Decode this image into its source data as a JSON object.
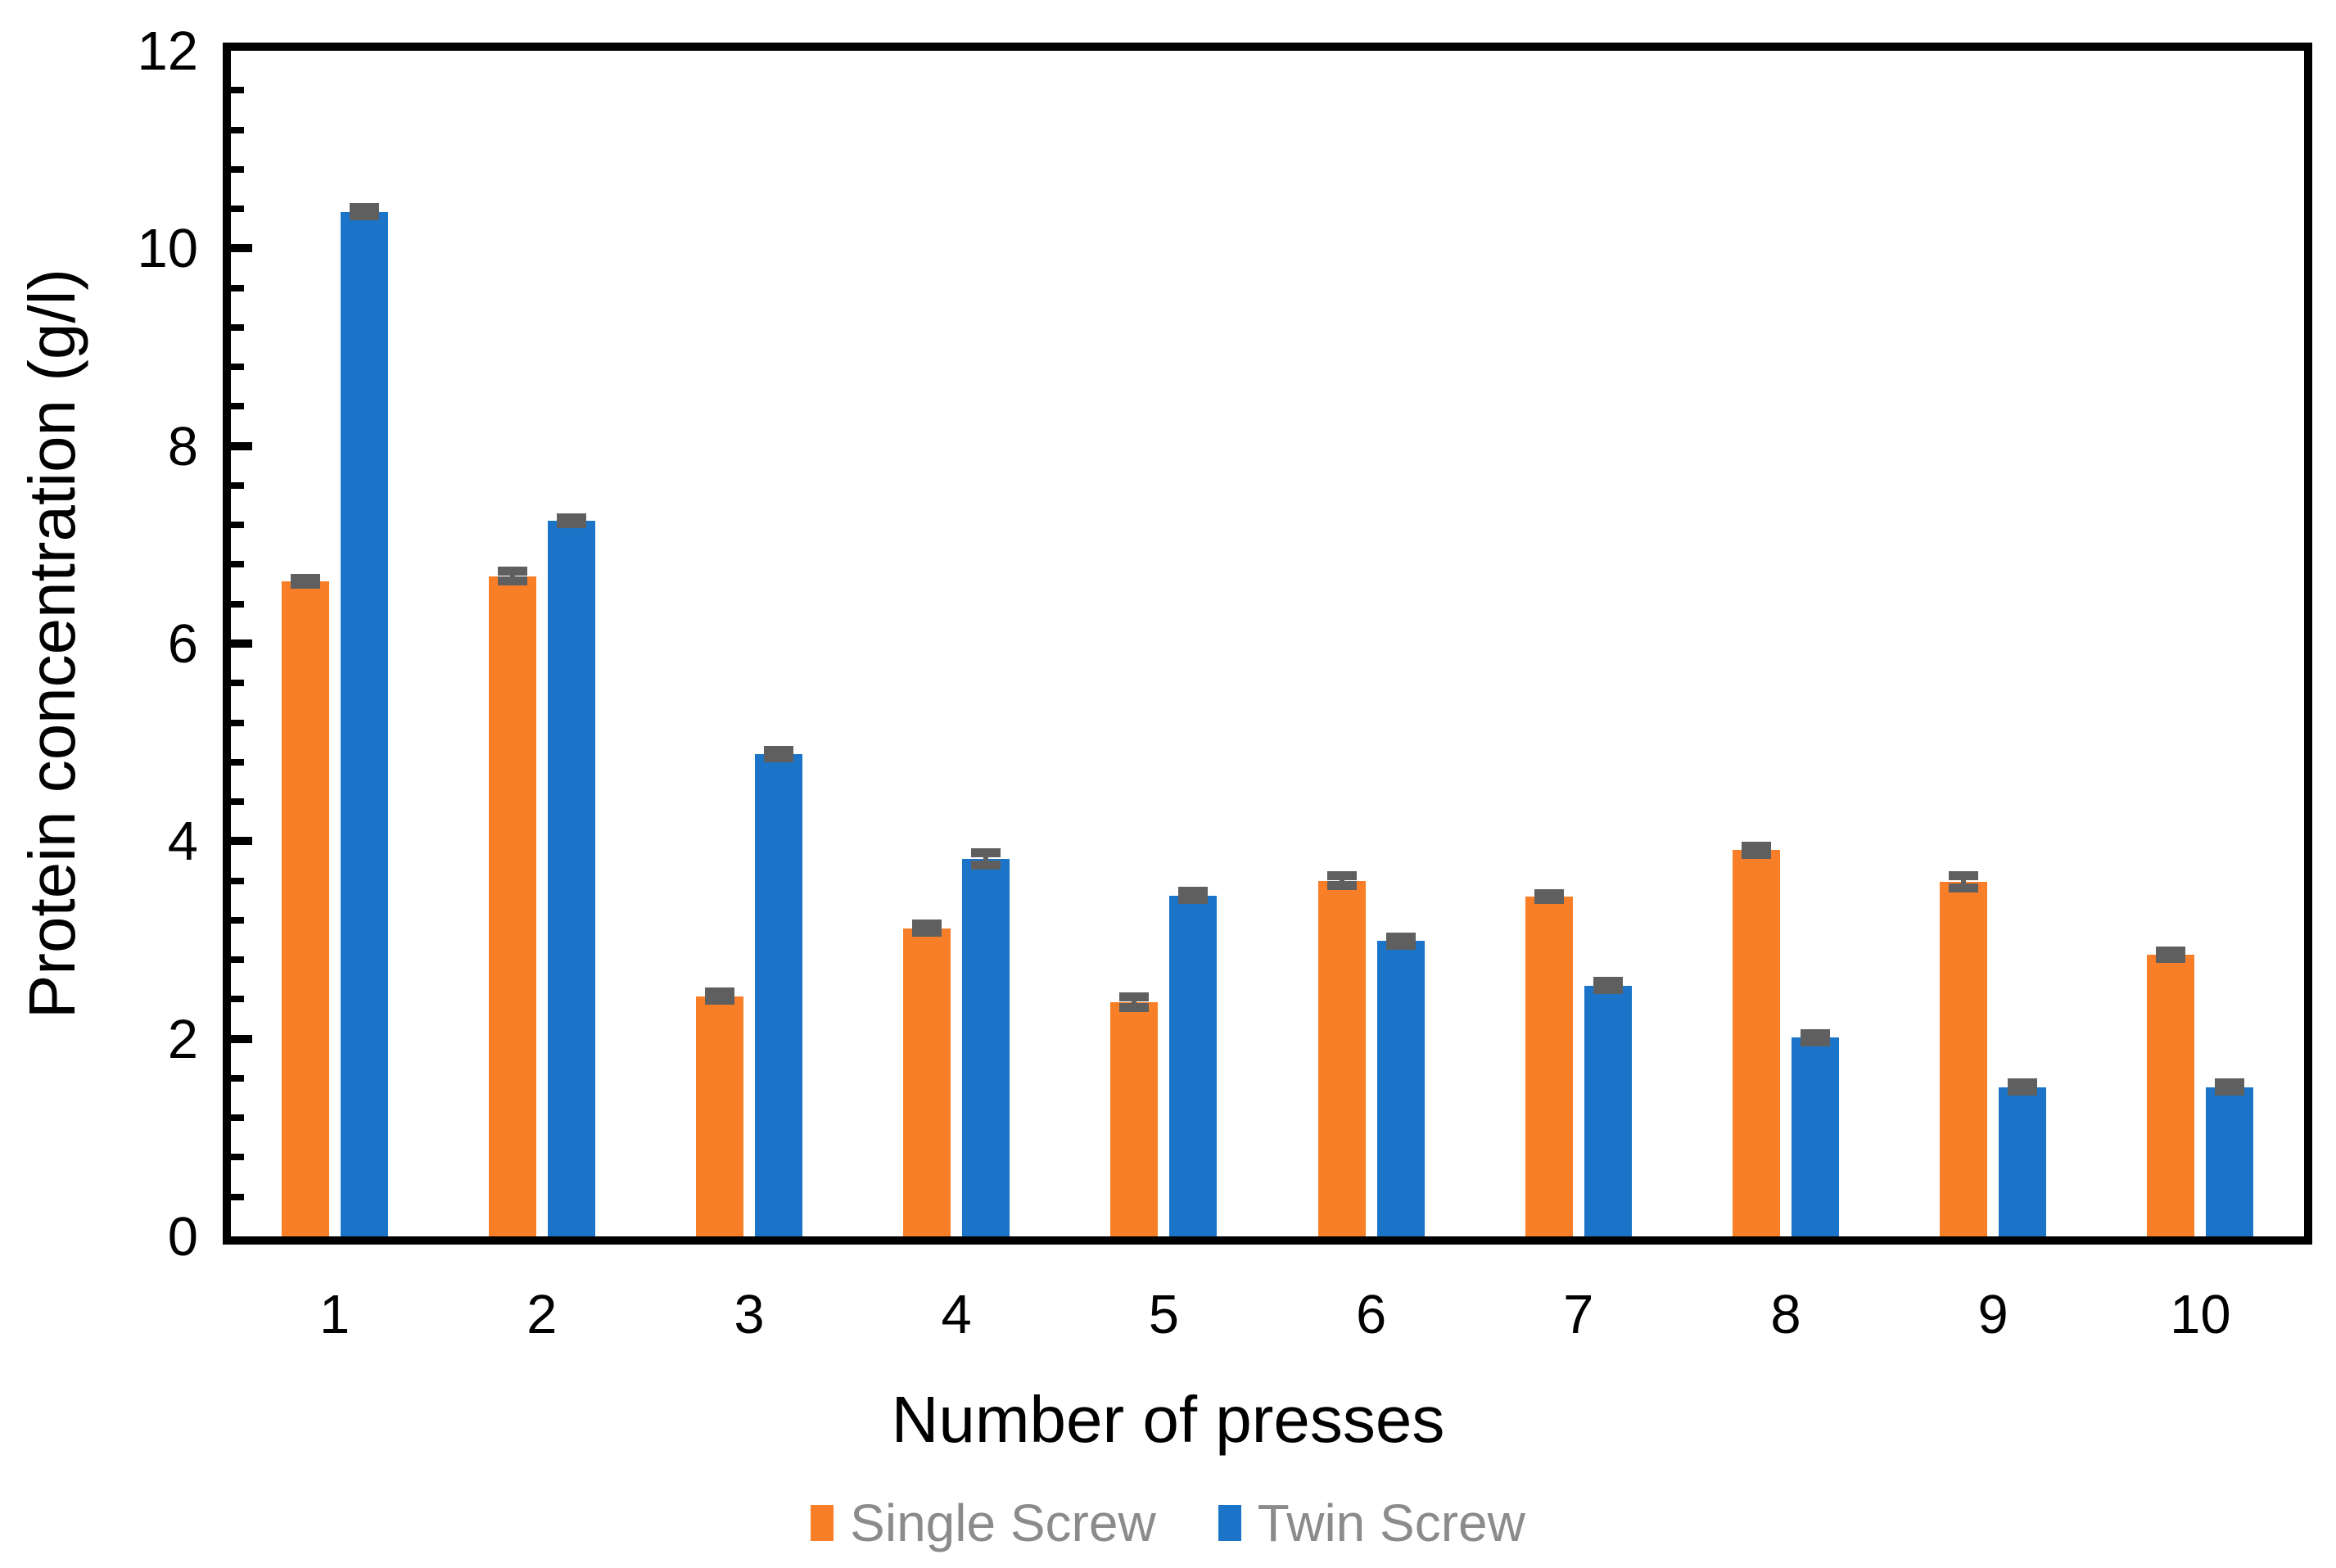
{
  "chart_data": {
    "type": "bar",
    "title": "",
    "xlabel": "Number of presses",
    "ylabel": "Protein concentration (g/l)",
    "categories": [
      "1",
      "2",
      "3",
      "4",
      "5",
      "6",
      "7",
      "8",
      "9",
      "10"
    ],
    "series": [
      {
        "name": "Single Screw",
        "color": "#F87E27",
        "values": [
          6.63,
          6.68,
          2.43,
          3.12,
          2.37,
          3.6,
          3.44,
          3.91,
          3.59,
          2.85
        ],
        "errors": [
          0.03,
          0.05,
          0.04,
          0.04,
          0.05,
          0.05,
          0.03,
          0.04,
          0.06,
          0.04
        ]
      },
      {
        "name": "Twin Screw",
        "color": "#1B74C8",
        "values": [
          10.37,
          7.24,
          4.88,
          3.82,
          3.45,
          2.99,
          2.54,
          2.01,
          1.51,
          1.51
        ],
        "errors": [
          0.04,
          0.03,
          0.04,
          0.06,
          0.04,
          0.04,
          0.04,
          0.04,
          0.04,
          0.04
        ]
      }
    ],
    "ylim": [
      0,
      12
    ],
    "y_axis": {
      "major_unit": 2,
      "minor_unit": 0.4,
      "tick_labels": [
        "0",
        "2",
        "4",
        "6",
        "8",
        "10",
        "12"
      ]
    },
    "grid": false,
    "legend_position": "bottom",
    "colors": {
      "error_bar": "#5F5F5F",
      "legend_text": "#8B8B8B",
      "axis": "#000000",
      "background": "#FFFFFF"
    }
  }
}
